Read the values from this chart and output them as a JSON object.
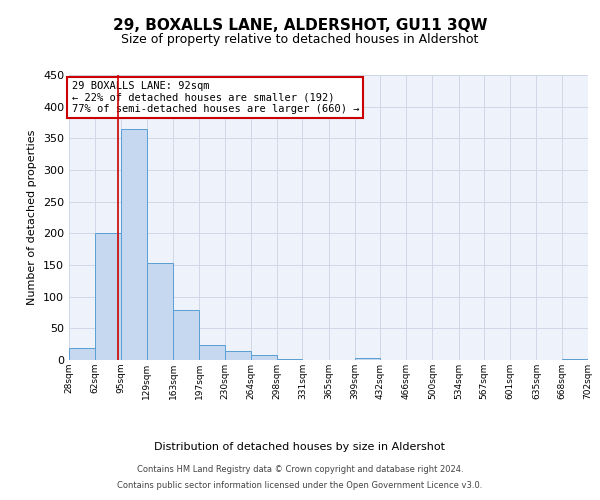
{
  "title": "29, BOXALLS LANE, ALDERSHOT, GU11 3QW",
  "subtitle": "Size of property relative to detached houses in Aldershot",
  "xlabel": "Distribution of detached houses by size in Aldershot",
  "ylabel": "Number of detached properties",
  "bin_labels": [
    "28sqm",
    "62sqm",
    "95sqm",
    "129sqm",
    "163sqm",
    "197sqm",
    "230sqm",
    "264sqm",
    "298sqm",
    "331sqm",
    "365sqm",
    "399sqm",
    "432sqm",
    "466sqm",
    "500sqm",
    "534sqm",
    "567sqm",
    "601sqm",
    "635sqm",
    "668sqm",
    "702sqm"
  ],
  "bar_values": [
    19,
    200,
    365,
    153,
    79,
    23,
    15,
    8,
    2,
    0,
    0,
    3,
    0,
    0,
    0,
    0,
    0,
    0,
    0,
    2
  ],
  "bar_color": "#c5d8f0",
  "bar_edge_color": "#5a9fd4",
  "annotation_box_text": "29 BOXALLS LANE: 92sqm\n← 22% of detached houses are smaller (192)\n77% of semi-detached houses are larger (660) →",
  "annotation_box_edge_color": "#cc0000",
  "vline_x": 92,
  "vline_color": "#cc0000",
  "grid_color": "#d0d8e8",
  "background_color": "#eef2fa",
  "footer_line1": "Contains HM Land Registry data © Crown copyright and database right 2024.",
  "footer_line2": "Contains public sector information licensed under the Open Government Licence v3.0.",
  "ylim": [
    0,
    450
  ],
  "title_fontsize": 11,
  "subtitle_fontsize": 9,
  "bin_edges": [
    28,
    62,
    95,
    129,
    163,
    197,
    230,
    264,
    298,
    331,
    365,
    399,
    432,
    466,
    500,
    534,
    567,
    601,
    635,
    668,
    702
  ]
}
